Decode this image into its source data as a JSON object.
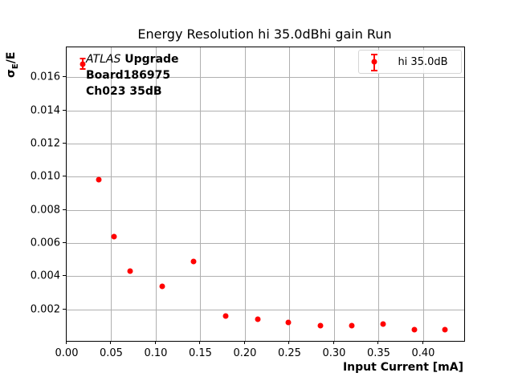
{
  "chart_data": {
    "type": "scatter",
    "title": "Energy Resolution hi 35.0dBhi gain Run",
    "xlabel": "Input Current [mA]",
    "ylabel_sigma": "σ",
    "ylabel_sub": "E",
    "ylabel_rest": "/E",
    "grid": true,
    "legend_position": "upper right",
    "legend": [
      {
        "label": "hi 35.0dB",
        "color": "#ff0000"
      }
    ],
    "annotation": {
      "line1_italic": "ATLAS",
      "line1_bold": " Upgrade",
      "line2": "Board186975",
      "line3": "Ch023 35dB"
    },
    "colors": {
      "series": "#ff0000",
      "grid": "#b0b0b0",
      "spine": "#000000"
    },
    "xlim": [
      0.0,
      0.446
    ],
    "ylim": [
      0.0001,
      0.0178
    ],
    "xticks": [
      {
        "v": 0.0,
        "label": "0.00"
      },
      {
        "v": 0.05,
        "label": "0.05"
      },
      {
        "v": 0.1,
        "label": "0.10"
      },
      {
        "v": 0.15,
        "label": "0.15"
      },
      {
        "v": 0.2,
        "label": "0.20"
      },
      {
        "v": 0.25,
        "label": "0.25"
      },
      {
        "v": 0.3,
        "label": "0.30"
      },
      {
        "v": 0.35,
        "label": "0.35"
      },
      {
        "v": 0.4,
        "label": "0.40"
      }
    ],
    "yticks": [
      {
        "v": 0.002,
        "label": "0.002"
      },
      {
        "v": 0.004,
        "label": "0.004"
      },
      {
        "v": 0.006,
        "label": "0.006"
      },
      {
        "v": 0.008,
        "label": "0.008"
      },
      {
        "v": 0.01,
        "label": "0.010"
      },
      {
        "v": 0.012,
        "label": "0.012"
      },
      {
        "v": 0.014,
        "label": "0.014"
      },
      {
        "v": 0.016,
        "label": "0.016"
      }
    ],
    "series": [
      {
        "name": "hi 35.0dB",
        "color": "#ff0000",
        "points": [
          {
            "x": 0.018,
            "y": 0.0168,
            "yerr": 0.0003
          },
          {
            "x": 0.036,
            "y": 0.0098,
            "yerr": 0
          },
          {
            "x": 0.053,
            "y": 0.0064,
            "yerr": 0
          },
          {
            "x": 0.071,
            "y": 0.0043,
            "yerr": 0
          },
          {
            "x": 0.107,
            "y": 0.0034,
            "yerr": 0
          },
          {
            "x": 0.142,
            "y": 0.0049,
            "yerr": 0
          },
          {
            "x": 0.178,
            "y": 0.0016,
            "yerr": 0
          },
          {
            "x": 0.214,
            "y": 0.0014,
            "yerr": 0
          },
          {
            "x": 0.249,
            "y": 0.0012,
            "yerr": 0
          },
          {
            "x": 0.285,
            "y": 0.001,
            "yerr": 0
          },
          {
            "x": 0.32,
            "y": 0.001,
            "yerr": 0
          },
          {
            "x": 0.355,
            "y": 0.0011,
            "yerr": 0
          },
          {
            "x": 0.39,
            "y": 0.0008,
            "yerr": 0
          },
          {
            "x": 0.424,
            "y": 0.0008,
            "yerr": 0
          }
        ]
      }
    ]
  }
}
